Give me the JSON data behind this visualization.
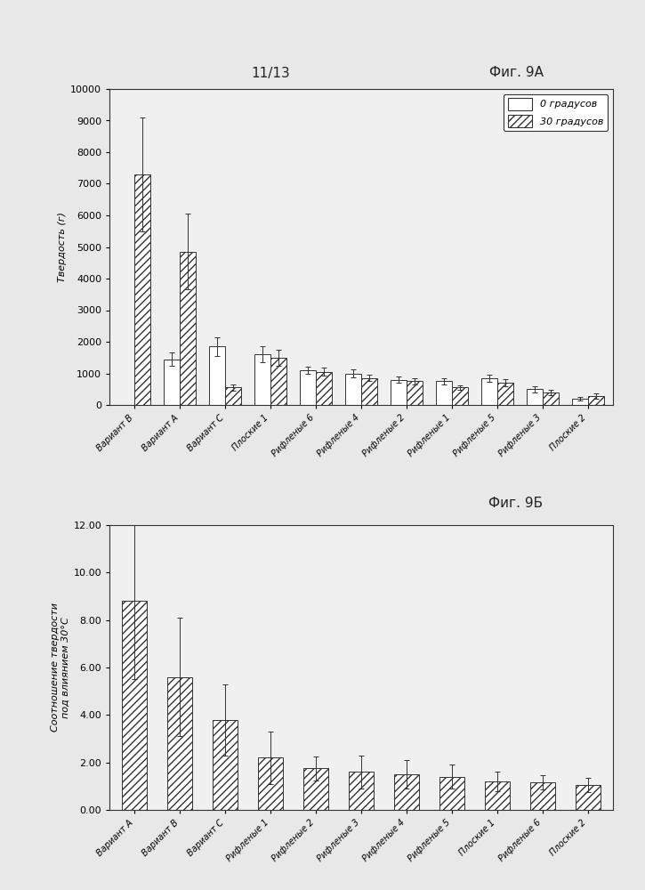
{
  "fig9a": {
    "title": "11/13",
    "subtitle": "Фиг. 9А",
    "ylabel": "Твердость (г)",
    "ylim": [
      0,
      10000
    ],
    "yticks": [
      0,
      1000,
      2000,
      3000,
      4000,
      5000,
      6000,
      7000,
      8000,
      9000,
      10000
    ],
    "categories": [
      "Вариант B",
      "Вариант A",
      "Вариант C",
      "Плоские 1",
      "Рифленые 6",
      "Рифленые 4",
      "Рифленые 2",
      "Рифленые 1",
      "Рифленые 5",
      "Рифленые 3",
      "Плоские 2"
    ],
    "series0": [
      null,
      1450,
      1850,
      1600,
      1100,
      1000,
      800,
      750,
      850,
      500,
      200
    ],
    "series30": [
      7300,
      4850,
      550,
      1500,
      1050,
      850,
      750,
      550,
      700,
      400,
      280
    ],
    "err0": [
      null,
      200,
      300,
      250,
      120,
      120,
      100,
      100,
      120,
      100,
      60
    ],
    "err30": [
      1800,
      1200,
      100,
      250,
      120,
      100,
      100,
      80,
      120,
      80,
      80
    ],
    "legend0": "0 градусов",
    "legend30": "30 градусов"
  },
  "fig9b": {
    "subtitle": "Фиг. 9Б",
    "ylabel_line1": "Соотношение твердости",
    "ylabel_line2": "под влиянием 30°С",
    "ylim": [
      0,
      12
    ],
    "ytick_vals": [
      0.0,
      2.0,
      4.0,
      6.0,
      8.0,
      10.0,
      12.0
    ],
    "ytick_labels": [
      "0.00",
      "2.00",
      "4.00",
      "6.00",
      "8.00",
      "10.00",
      "12.00"
    ],
    "categories": [
      "Вариант A",
      "Вариант B",
      "Вариант C",
      "Рифленые 1",
      "Рифленые 2",
      "Рифленые 3",
      "Рифленые 4",
      "Рифленые 5",
      "Плоские 1",
      "Рифленые 6",
      "Плоские 2"
    ],
    "values": [
      8.8,
      5.6,
      3.8,
      2.2,
      1.75,
      1.6,
      1.5,
      1.4,
      1.2,
      1.15,
      1.05
    ],
    "errors": [
      3.3,
      2.5,
      1.5,
      1.1,
      0.5,
      0.7,
      0.6,
      0.5,
      0.4,
      0.3,
      0.3
    ]
  },
  "page_bg": "#e8e8e8",
  "chart_bg": "#f0f0f0",
  "bar_white": "#ffffff",
  "bar_edge": "#333333",
  "hatch": "////",
  "title_fontsize": 11,
  "label_fontsize": 8,
  "tick_fontsize": 8,
  "cat_fontsize": 7
}
